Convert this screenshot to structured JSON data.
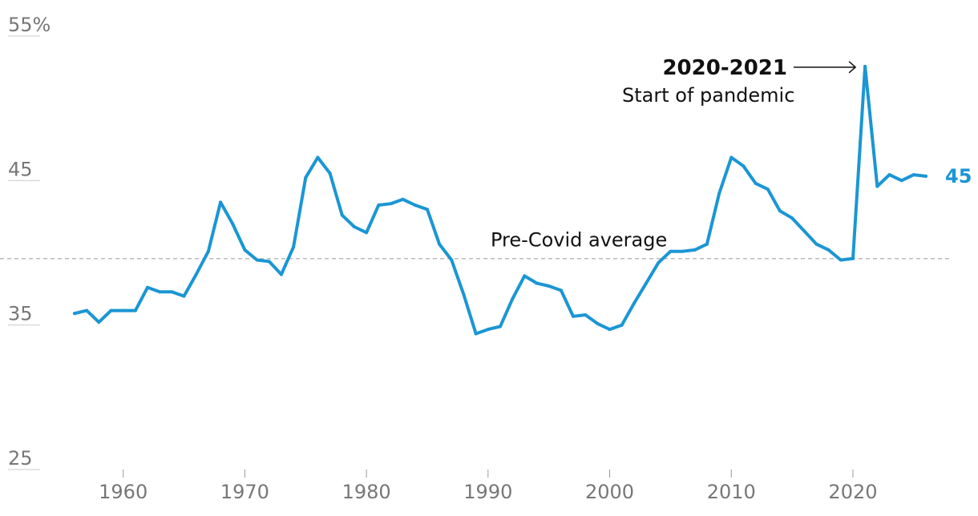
{
  "colors": {
    "series": "#1a96d4",
    "average": "#bbbbbb",
    "tick": "#777777",
    "annotation": "#111111"
  },
  "chart_data": {
    "type": "line",
    "title": "",
    "xlabel": "",
    "ylabel": "",
    "xlim": [
      1956,
      2026
    ],
    "ylim": [
      25,
      55
    ],
    "y_ticks": [
      {
        "value": 55,
        "label": "55%"
      },
      {
        "value": 45,
        "label": "45"
      },
      {
        "value": 35,
        "label": "35"
      },
      {
        "value": 25,
        "label": "25"
      }
    ],
    "x_ticks": [
      {
        "value": 1960,
        "label": "1960"
      },
      {
        "value": 1970,
        "label": "1970"
      },
      {
        "value": 1980,
        "label": "1980"
      },
      {
        "value": 1990,
        "label": "1990"
      },
      {
        "value": 2000,
        "label": "2000"
      },
      {
        "value": 2010,
        "label": "2010"
      },
      {
        "value": 2020,
        "label": "2020"
      }
    ],
    "grid": false,
    "series": [
      {
        "x": [
          1956,
          1957,
          1958,
          1959,
          1960,
          1961,
          1962,
          1963,
          1964,
          1965,
          1966,
          1967,
          1968,
          1969,
          1970,
          1971,
          1972,
          1973,
          1974,
          1975,
          1976,
          1977,
          1978,
          1979,
          1980,
          1981,
          1982,
          1983,
          1984,
          1985,
          1986,
          1987,
          1988,
          1989,
          1990,
          1991,
          1992,
          1993,
          1994,
          1995,
          1996,
          1997,
          1998,
          1999,
          2000,
          2001,
          2002,
          2003,
          2004,
          2005,
          2006,
          2007,
          2008,
          2009,
          2010,
          2011,
          2012,
          2013,
          2014,
          2015,
          2016,
          2017,
          2018,
          2019,
          2020,
          2021,
          2022,
          2023,
          2024,
          2025,
          2026
        ],
        "values": [
          35.8,
          36.0,
          35.2,
          36.0,
          36.0,
          36.0,
          37.6,
          37.3,
          37.3,
          37.0,
          38.5,
          40.1,
          43.5,
          42.0,
          40.2,
          39.5,
          39.4,
          38.5,
          40.4,
          45.2,
          46.6,
          45.5,
          42.6,
          41.8,
          41.4,
          43.3,
          43.4,
          43.7,
          43.3,
          43.0,
          40.6,
          39.5,
          37.1,
          34.4,
          34.7,
          34.9,
          36.8,
          38.4,
          37.9,
          37.7,
          37.4,
          35.6,
          35.7,
          35.1,
          34.7,
          35.0,
          36.5,
          37.9,
          39.3,
          40.1,
          40.1,
          40.2,
          40.6,
          44.1,
          46.6,
          46.0,
          44.8,
          44.4,
          42.9,
          42.4,
          41.5,
          40.6,
          40.2,
          39.5,
          39.6,
          52.9,
          44.6,
          45.4,
          45.0,
          45.4,
          45.3
        ]
      }
    ],
    "reference_line": {
      "value": 39.6,
      "label": "Pre-Covid average"
    },
    "annotation": {
      "x": 2021,
      "y": 52.9,
      "title": "2020-2021",
      "text": "Start of pandemic"
    },
    "end_label": "45"
  }
}
